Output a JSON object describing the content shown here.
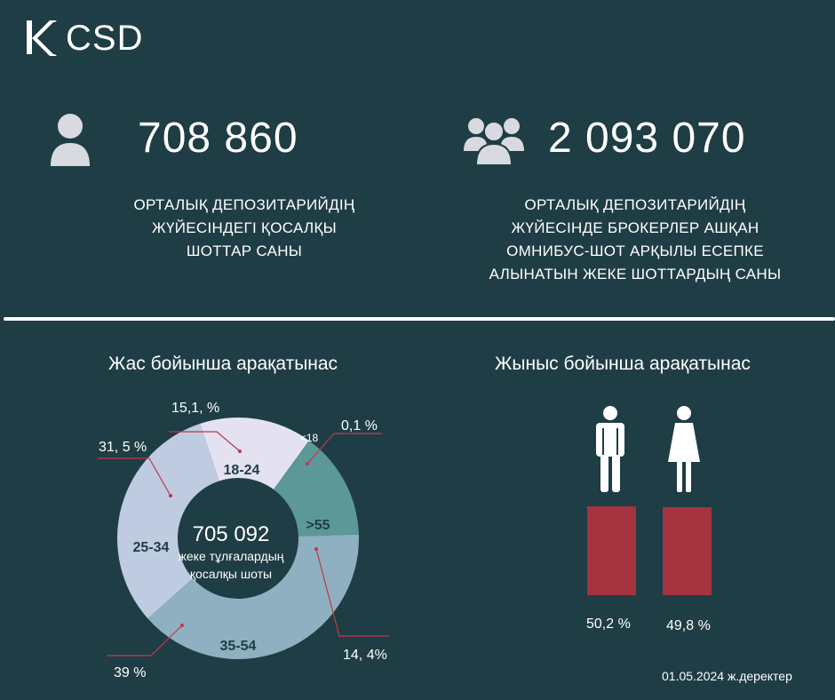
{
  "brand": {
    "logo_text": "CSD"
  },
  "stats": [
    {
      "icon": "person-icon",
      "value": "708 860",
      "lines": [
        "ОРТАЛЫҚ ДЕПОЗИТАРИЙДІҢ",
        "ЖҮЙЕСІНДЕГІ ҚОСАЛҚЫ",
        "ШОТТАР САНЫ"
      ]
    },
    {
      "icon": "group-icon",
      "value": "2 093 070",
      "lines": [
        "ОРТАЛЫҚ ДЕПОЗИТАРИЙДІҢ",
        "ЖҮЙЕСІНДЕ БРОКЕРЛЕР АШҚАН",
        "ОМНИБУС-ШОТ АРҚЫЛЫ ЕСЕПКЕ",
        "АЛЫНАТЫН ЖЕКЕ ШОТТАРДЫҢ САНЫ"
      ]
    }
  ],
  "colors": {
    "background": "#1f3d45",
    "bar": "#a3343f",
    "leader": "#c0394a",
    "seg_18_24": "#e4e2f1",
    "seg_55": "#5c9897",
    "seg_35_54": "#8eb0c0",
    "seg_25_34": "#bfcbe0",
    "seg_lt18": "#3d8a84"
  },
  "chart_data": [
    {
      "type": "pie",
      "title": "Жас бойынша арақатынас",
      "center_value": "705 092",
      "center_lines": [
        "жеке тұлғалардың",
        "қосалқы шоты"
      ],
      "segments": [
        {
          "label": "<18",
          "value": 0.1,
          "value_label": "0,1 %",
          "color": "#3d8a84"
        },
        {
          "label": ">55",
          "value": 14.4,
          "value_label": "14, 4%",
          "color": "#5c9897"
        },
        {
          "label": "35-54",
          "value": 39,
          "value_label": "39 %",
          "color": "#8eb0c0"
        },
        {
          "label": "25-34",
          "value": 31.5,
          "value_label": "31, 5 %",
          "color": "#bfcbe0"
        },
        {
          "label": "18-24",
          "value": 15.1,
          "value_label": "15,1, %",
          "color": "#e4e2f1"
        }
      ]
    },
    {
      "type": "bar",
      "title": "Жыныс бойынша арақатынас",
      "categories": [
        "male",
        "female"
      ],
      "category_icons": [
        "male-icon",
        "female-icon"
      ],
      "values": [
        50.2,
        49.8
      ],
      "value_labels": [
        "50,2 %",
        "49,8 %"
      ]
    }
  ],
  "footer": {
    "date": "01.05.2024 ж.деректер"
  }
}
